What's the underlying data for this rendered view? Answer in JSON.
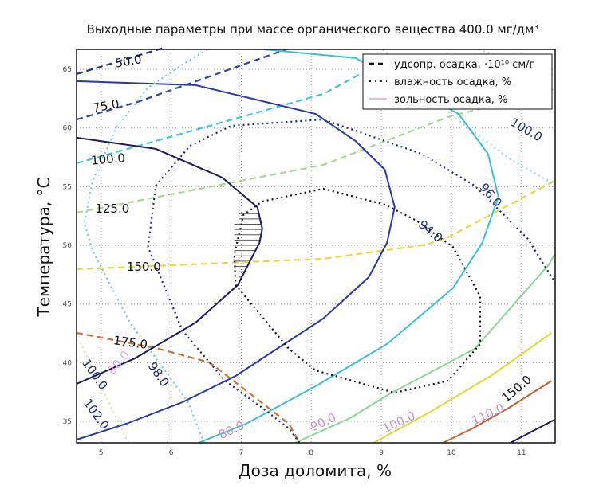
{
  "chart_data": {
    "type": "contour",
    "title": "Выходные параметры при массе органического вещества 400.0 мг/дм³",
    "xlabel": "Доза доломита, %",
    "ylabel": "Температура, °C",
    "xlim": [
      4.65,
      11.48
    ],
    "ylim": [
      33.17,
      66.7
    ],
    "xticks": [
      "5",
      "6",
      "7",
      "8",
      "9",
      "10",
      "11"
    ],
    "yticks": [
      "35",
      "40",
      "45",
      "50",
      "55",
      "60",
      "65"
    ],
    "grid": true,
    "legend": {
      "placement": "top-right",
      "items": [
        {
          "label": "удсопр. осадка, ·10¹⁰ см/г",
          "style": "dashed",
          "color": "#111111"
        },
        {
          "label": "влажность осадка, %",
          "style": "dotted",
          "color": "#1c2a80"
        },
        {
          "label": "зольность осадка, %",
          "style": "solid",
          "color": "#e0a0d8"
        }
      ]
    },
    "series": [
      {
        "group": "resistance",
        "style": "dashed",
        "color": "#1c2f8a",
        "points": [
          [
            4.65,
            64.6
          ],
          [
            5.9,
            66.84
          ]
        ]
      },
      {
        "group": "resistance",
        "style": "dashed",
        "color": "#2a48a8",
        "points": [
          [
            4.65,
            60.73
          ],
          [
            5.52,
            62.22
          ],
          [
            7.64,
            66.7
          ]
        ]
      },
      {
        "group": "resistance",
        "style": "dashed",
        "color": "#40c8d8",
        "points": [
          [
            4.65,
            57.0
          ],
          [
            8.17,
            62.9
          ],
          [
            8.7,
            64.6
          ],
          [
            8.97,
            65.35
          ]
        ]
      },
      {
        "group": "resistance",
        "style": "dashed",
        "color": "#a8d890",
        "points": [
          [
            4.65,
            52.79
          ],
          [
            8.17,
            56.86
          ],
          [
            9.95,
            60.93
          ],
          [
            11.47,
            63.3
          ]
        ]
      },
      {
        "group": "resistance",
        "style": "dashed",
        "color": "#e8d840",
        "points": [
          [
            4.65,
            47.97
          ],
          [
            8.17,
            48.85
          ],
          [
            9.65,
            50.07
          ],
          [
            9.95,
            50.68
          ],
          [
            11.47,
            55.5
          ]
        ]
      },
      {
        "group": "resistance",
        "style": "dashed",
        "color": "#d07030",
        "points": [
          [
            4.65,
            42.54
          ],
          [
            5.78,
            41.25
          ],
          [
            6.55,
            40.02
          ],
          [
            7.68,
            34.8
          ],
          [
            7.83,
            33.17
          ]
        ]
      },
      {
        "group": "ash",
        "style": "solid",
        "color": "#1a1a60",
        "points": [
          [
            4.65,
            59.17
          ],
          [
            5.78,
            58.22
          ],
          [
            6.73,
            55.77
          ],
          [
            7.23,
            53.26
          ],
          [
            7.3,
            51.43
          ],
          [
            7.26,
            50.21
          ],
          [
            6.95,
            46.61
          ],
          [
            6.35,
            43.42
          ],
          [
            5.48,
            40.36
          ],
          [
            4.65,
            38.19
          ]
        ]
      },
      {
        "group": "ash",
        "style": "solid",
        "color": "#2838a8",
        "points": [
          [
            4.65,
            63.99
          ],
          [
            6.35,
            63.65
          ],
          [
            8.06,
            61.2
          ],
          [
            8.63,
            58.9
          ],
          [
            9.05,
            56.45
          ],
          [
            9.19,
            53.26
          ],
          [
            9.08,
            50.21
          ],
          [
            8.82,
            47.29
          ],
          [
            8.17,
            43.76
          ],
          [
            6.92,
            38.87
          ],
          [
            6.16,
            36.63
          ],
          [
            5.36,
            34.8
          ],
          [
            4.65,
            33.44
          ]
        ]
      },
      {
        "group": "ash",
        "style": "solid",
        "color": "#38c0d8",
        "points": [
          [
            7.32,
            66.7
          ],
          [
            8.63,
            65.96
          ],
          [
            10.1,
            61.2
          ],
          [
            10.52,
            57.81
          ],
          [
            10.67,
            54.14
          ],
          [
            10.44,
            50.21
          ],
          [
            10.02,
            46.34
          ],
          [
            9.08,
            41.59
          ],
          [
            8.06,
            37.99
          ],
          [
            7.07,
            34.8
          ],
          [
            6.39,
            33.17
          ]
        ]
      },
      {
        "group": "ash",
        "style": "solid",
        "color": "#88d890",
        "points": [
          [
            7.77,
            33.17
          ],
          [
            8.55,
            35.27
          ],
          [
            9.11,
            37.31
          ],
          [
            10.33,
            41.18
          ],
          [
            11.39,
            48.37
          ],
          [
            11.48,
            49.32
          ]
        ]
      },
      {
        "group": "ash",
        "style": "solid",
        "color": "#e0d830",
        "points": [
          [
            8.89,
            33.17
          ],
          [
            9.68,
            35.75
          ],
          [
            10.56,
            38.87
          ],
          [
            11.43,
            42.54
          ]
        ]
      },
      {
        "group": "ash",
        "style": "solid",
        "color": "#c06030",
        "points": [
          [
            9.88,
            33.17
          ],
          [
            10.3,
            34.39
          ],
          [
            10.82,
            36.15
          ],
          [
            11.43,
            38.46
          ]
        ]
      },
      {
        "group": "ash",
        "style": "solid",
        "color": "#1a1a60",
        "points": [
          [
            10.84,
            33.17
          ],
          [
            11.47,
            35.14
          ]
        ]
      },
      {
        "group": "moisture",
        "style": "dotted",
        "color": "#111111",
        "points": [
          [
            7.3,
            53.74
          ],
          [
            8.17,
            54.82
          ],
          [
            9.05,
            53.47
          ],
          [
            9.5,
            52.11
          ],
          [
            10.02,
            49.87
          ],
          [
            10.41,
            45.66
          ],
          [
            10.41,
            41.59
          ],
          [
            9.95,
            38.46
          ],
          [
            9.19,
            37.44
          ],
          [
            8.06,
            39.34
          ],
          [
            7.68,
            41.18
          ],
          [
            6.92,
            46.61
          ],
          [
            6.9,
            49.19
          ],
          [
            7.03,
            52.58
          ],
          [
            7.3,
            53.74
          ]
        ]
      },
      {
        "group": "moisture",
        "style": "dotted",
        "color": "#1c2a80",
        "points": [
          [
            7.83,
            33.17
          ],
          [
            7.68,
            34.39
          ],
          [
            7.3,
            36.15
          ],
          [
            6.77,
            38.46
          ],
          [
            6.16,
            42.74
          ],
          [
            5.67,
            49.87
          ],
          [
            5.78,
            55.09
          ],
          [
            6.27,
            58.49
          ],
          [
            6.86,
            60.19
          ],
          [
            8.17,
            60.73
          ],
          [
            9.57,
            57.81
          ],
          [
            10.33,
            55.09
          ],
          [
            11.09,
            50.55
          ],
          [
            11.48,
            46.81
          ]
        ]
      },
      {
        "group": "moisture",
        "style": "dotted",
        "color": "#70d0e0",
        "points": [
          [
            6.47,
            33.17
          ],
          [
            6.24,
            36.63
          ],
          [
            5.41,
            43.42
          ],
          [
            4.88,
            49.53
          ],
          [
            4.76,
            51.9
          ],
          [
            4.88,
            55.5
          ],
          [
            5.22,
            60.05
          ],
          [
            5.67,
            63.44
          ],
          [
            6.18,
            65.48
          ],
          [
            6.52,
            66.7
          ]
        ]
      },
      {
        "group": "moisture",
        "style": "dotted",
        "color": "#90d8e0",
        "points": [
          [
            9.02,
            66.7
          ],
          [
            10.08,
            60.73
          ],
          [
            10.84,
            57.34
          ],
          [
            11.48,
            55.16
          ]
        ]
      },
      {
        "group": "moisture",
        "style": "dotted",
        "color": "#b0dca0",
        "points": [
          [
            10.39,
            66.7
          ],
          [
            11.48,
            64.46
          ]
        ]
      },
      {
        "group": "moisture",
        "style": "dotted",
        "color": "#e8e0a0",
        "points": [
          [
            4.7,
            41.72
          ],
          [
            5.39,
            33.17
          ]
        ]
      }
    ],
    "hatched_region": {
      "y_range": [
        47.3,
        53.1
      ],
      "x_start": 6.9
    },
    "labels": [
      {
        "text": "50.0",
        "color": "#111111",
        "x": 5.39,
        "y": 65.69
      },
      {
        "text": "75.0",
        "color": "#111111",
        "x": 5.07,
        "y": 61.88
      },
      {
        "text": "100.0",
        "color": "#111111",
        "x": 5.1,
        "y": 57.34
      },
      {
        "text": "125.0",
        "color": "#111111",
        "x": 5.16,
        "y": 53.13
      },
      {
        "text": "150.0",
        "color": "#111111",
        "x": 5.61,
        "y": 48.17
      },
      {
        "text": "175.0",
        "color": "#111111",
        "x": 5.42,
        "y": 41.72
      },
      {
        "text": "100.0",
        "color": "#1c2a80",
        "x": 4.91,
        "y": 39.0
      },
      {
        "text": "80.0",
        "color": "#d8a8e0",
        "x": 5.25,
        "y": 40.0
      },
      {
        "text": "98.0",
        "color": "#1c2a80",
        "x": 5.82,
        "y": 39.0
      },
      {
        "text": "102.0",
        "color": "#1c2a80",
        "x": 4.93,
        "y": 35.61
      },
      {
        "text": "80.0",
        "color": "#c890d0",
        "x": 6.86,
        "y": 34.25
      },
      {
        "text": "90.0",
        "color": "#c890d0",
        "x": 8.17,
        "y": 34.93
      },
      {
        "text": "100.0",
        "color": "#c890d0",
        "x": 9.25,
        "y": 34.93
      },
      {
        "text": "110.0",
        "color": "#c890d0",
        "x": 10.52,
        "y": 35.6
      },
      {
        "text": "150.0",
        "color": "#111111",
        "x": 10.93,
        "y": 37.78
      },
      {
        "text": "94.0",
        "color": "#1c2a80",
        "x": 9.7,
        "y": 51.2
      },
      {
        "text": "96.0",
        "color": "#1c2a80",
        "x": 10.56,
        "y": 54.28
      },
      {
        "text": "100.0",
        "color": "#1c2a80",
        "x": 11.07,
        "y": 59.85
      }
    ]
  }
}
